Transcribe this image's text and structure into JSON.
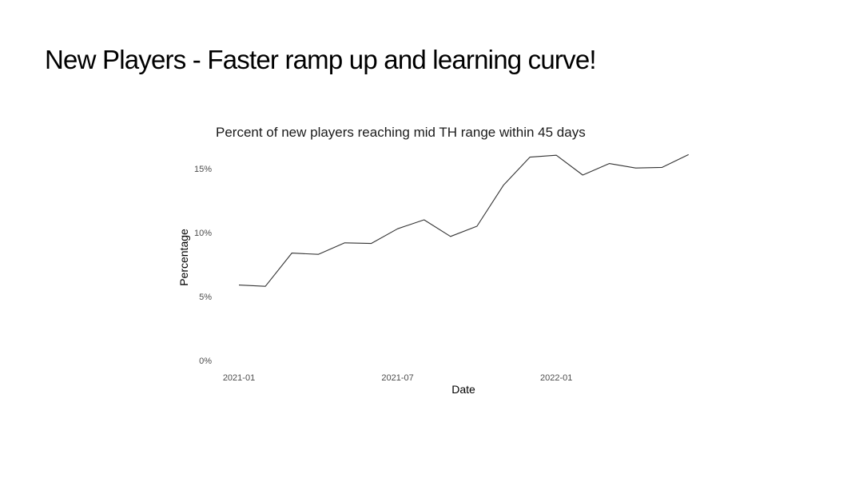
{
  "slide": {
    "title": "New Players - Faster ramp up and learning curve!"
  },
  "chart_data": {
    "type": "line",
    "title": "Percent of new players reaching mid TH range within 45 days",
    "xlabel": "Date",
    "ylabel": "Percentage",
    "x": [
      "2021-01",
      "2021-02",
      "2021-03",
      "2021-04",
      "2021-05",
      "2021-06",
      "2021-07",
      "2021-08",
      "2021-09",
      "2021-10",
      "2021-11",
      "2021-12",
      "2022-01",
      "2022-02",
      "2022-03",
      "2022-04",
      "2022-05",
      "2022-06"
    ],
    "x_ticks": [
      "2021-01",
      "2021-07",
      "2022-01"
    ],
    "y_ticks": [
      "0%",
      "5%",
      "10%",
      "15%"
    ],
    "ylim": [
      0,
      16.5
    ],
    "series": [
      {
        "values": [
          5.9,
          5.8,
          8.4,
          8.3,
          9.2,
          9.15,
          10.3,
          11.0,
          9.7,
          10.5,
          13.7,
          15.9,
          16.05,
          14.5,
          15.4,
          15.05,
          15.1,
          16.1
        ]
      }
    ],
    "grid": false,
    "legend": "none",
    "line_color": "#333333"
  }
}
